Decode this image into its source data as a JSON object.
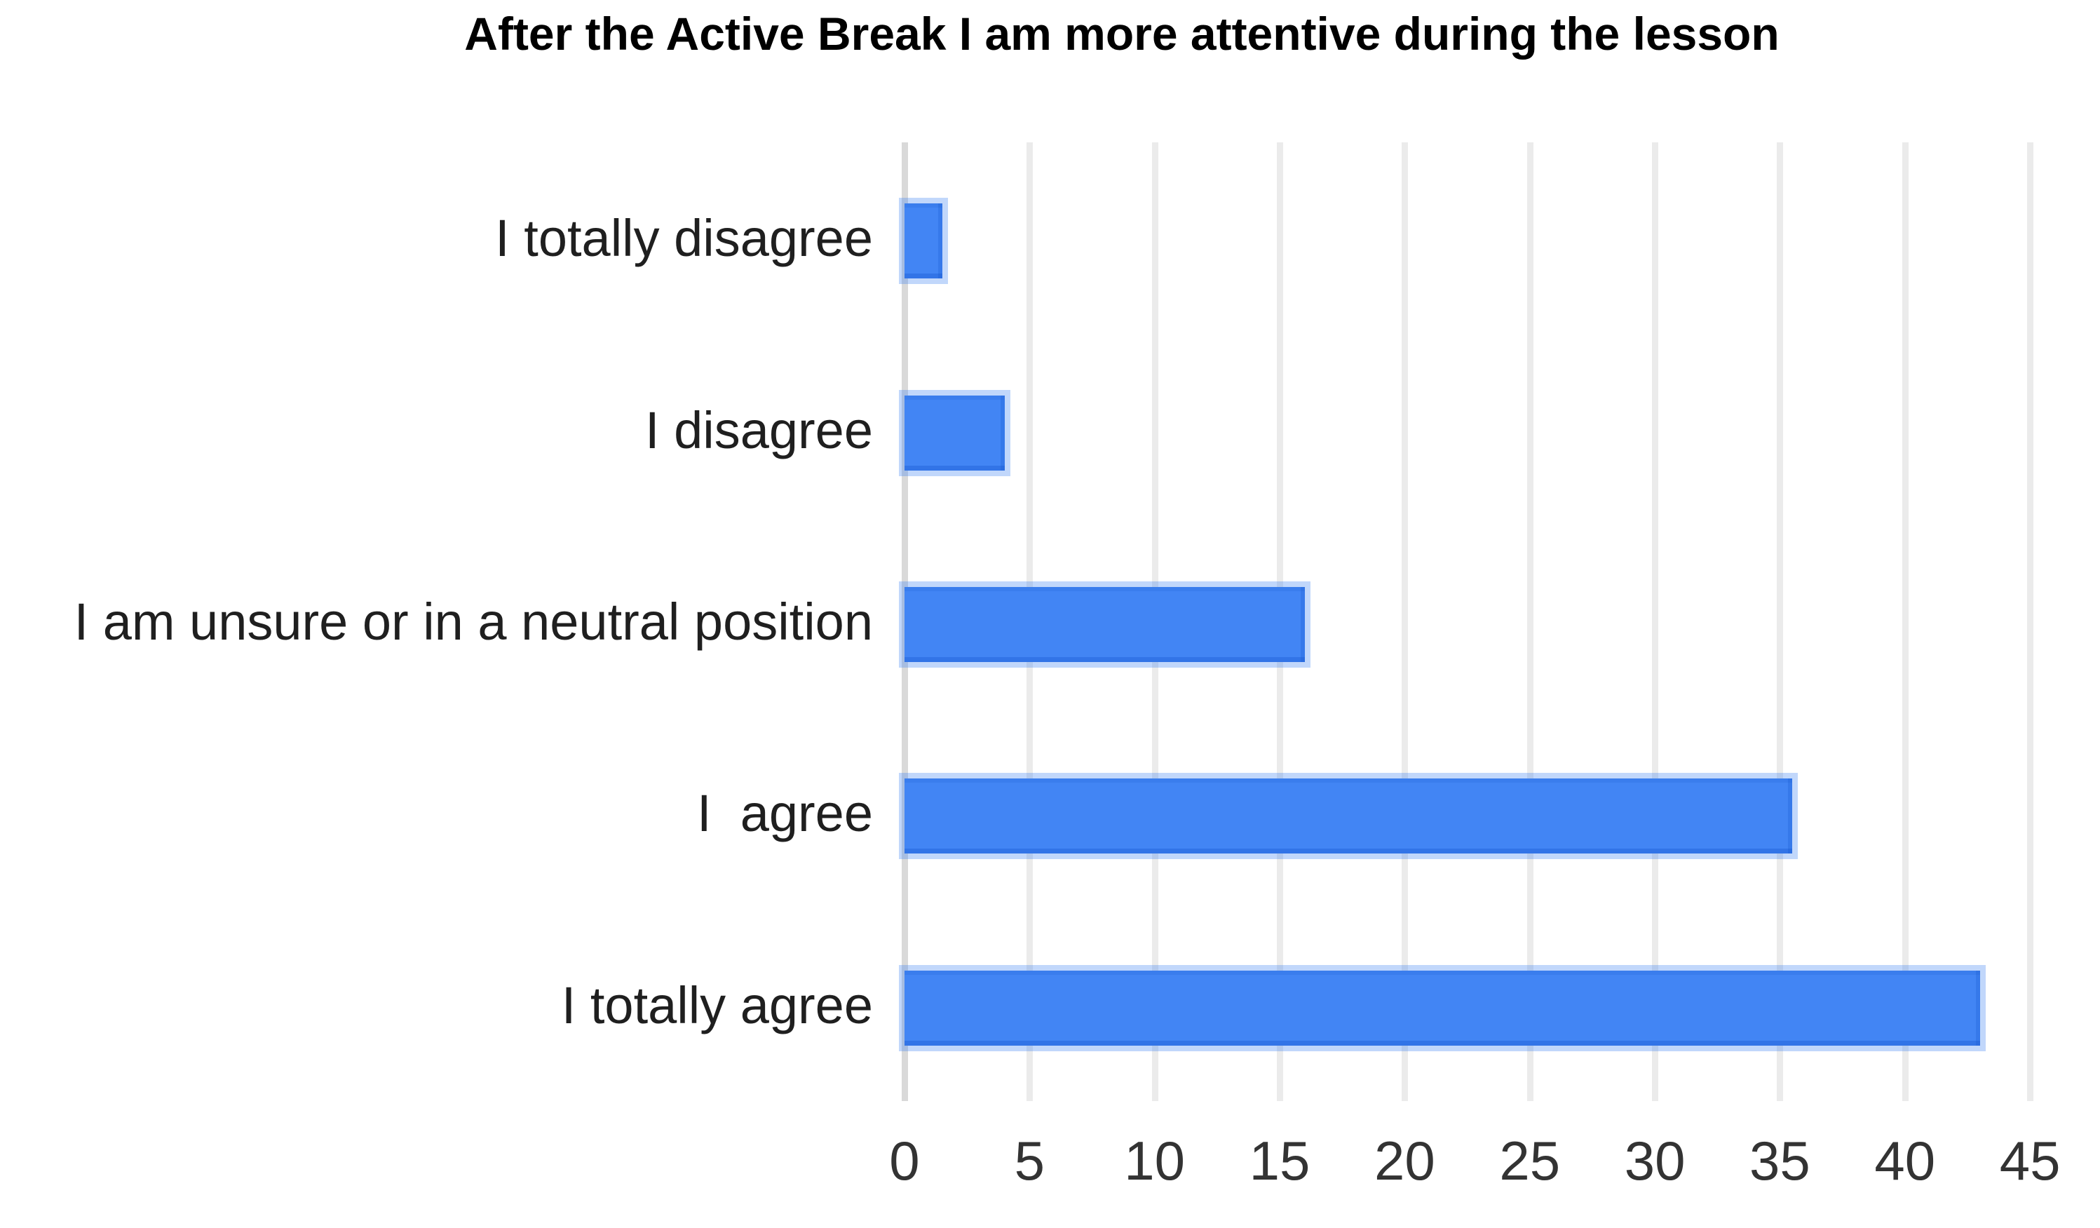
{
  "title": "After the Active Break I am more attentive during the lesson",
  "chart_data": {
    "type": "bar",
    "orientation": "horizontal",
    "title": "After the Active Break I am more attentive during the lesson",
    "categories": [
      "I totally disagree",
      "I disagree",
      "I am unsure or in a neutral position",
      "I  agree",
      "I totally agree"
    ],
    "values": [
      1.5,
      4,
      16,
      35.5,
      43
    ],
    "xlabel": "",
    "ylabel": "",
    "xlim": [
      0,
      45
    ],
    "x_ticks": [
      0,
      5,
      10,
      15,
      20,
      25,
      30,
      35,
      40,
      45
    ],
    "grid": true,
    "legend_position": "none",
    "bar_color": "#4285f4",
    "gridline_color": "#ebebeb",
    "zero_line_color": "#d9d9d9",
    "axis_tick_color": "#333333",
    "category_label_color": "#1f1f1f",
    "title_color": "#000000",
    "background_color": "#ffffff"
  }
}
